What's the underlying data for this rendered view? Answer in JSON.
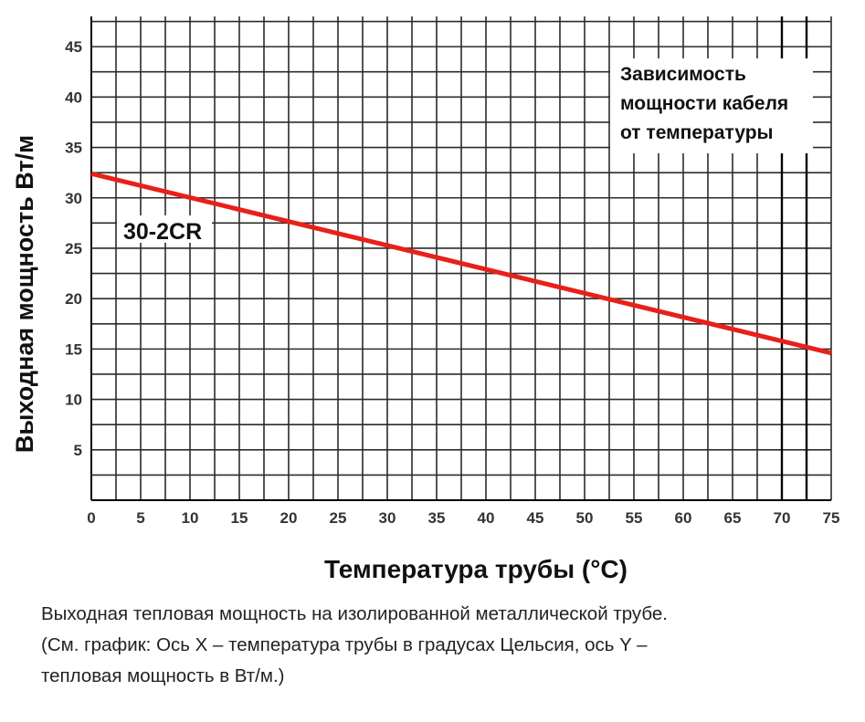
{
  "chart_data": {
    "type": "line",
    "xlabel": "Температура трубы (°C)",
    "ylabel": "Выходная мощность Вт/м",
    "xlim": [
      0,
      75
    ],
    "ylim": [
      0,
      48
    ],
    "grid": true,
    "x_ticks": [
      0,
      5,
      10,
      15,
      20,
      25,
      30,
      35,
      40,
      45,
      50,
      55,
      60,
      65,
      70,
      75
    ],
    "y_ticks": [
      5,
      10,
      15,
      20,
      25,
      30,
      35,
      40,
      45
    ],
    "annotation": [
      "Зависимость",
      "мощности кабеля",
      "от температуры"
    ],
    "reference_lines_x": [
      70,
      72.5
    ],
    "series": [
      {
        "name": "30-2CR",
        "color": "#e8201a",
        "x": [
          0,
          75
        ],
        "y": [
          32.4,
          14.6
        ]
      }
    ]
  },
  "caption": {
    "line1": "Выходная тепловая мощность на изолированной металлической трубе.",
    "line2": "(См. график: Ось X – температура трубы в градусах Цельсия, ось Y –",
    "line3": "тепловая мощность в Вт/м.)"
  }
}
